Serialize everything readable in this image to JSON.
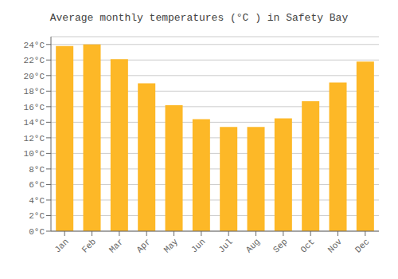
{
  "chart_data": {
    "type": "bar",
    "title": "Average monthly temperatures (°C ) in Safety Bay",
    "categories": [
      "Jan",
      "Feb",
      "Mar",
      "Apr",
      "May",
      "Jun",
      "Jul",
      "Aug",
      "Sep",
      "Oct",
      "Nov",
      "Dec"
    ],
    "values": [
      23.8,
      24.0,
      22.1,
      19.0,
      16.2,
      14.4,
      13.4,
      13.4,
      14.5,
      16.7,
      19.1,
      21.8
    ],
    "color": "#FDB827",
    "ylim": [
      0,
      25
    ],
    "yticks": [
      {
        "value": 0,
        "label": "0°C"
      },
      {
        "value": 2,
        "label": "2°C"
      },
      {
        "value": 4,
        "label": "4°C"
      },
      {
        "value": 6,
        "label": "6°C"
      },
      {
        "value": 8,
        "label": "8°C"
      },
      {
        "value": 10,
        "label": "10°C"
      },
      {
        "value": 12,
        "label": "12°C"
      },
      {
        "value": 14,
        "label": "14°C"
      },
      {
        "value": 16,
        "label": "16°C"
      },
      {
        "value": 18,
        "label": "18°C"
      },
      {
        "value": 20,
        "label": "20°C"
      },
      {
        "value": 22,
        "label": "22°C"
      },
      {
        "value": 24,
        "label": "24°C"
      }
    ],
    "grid": true
  }
}
